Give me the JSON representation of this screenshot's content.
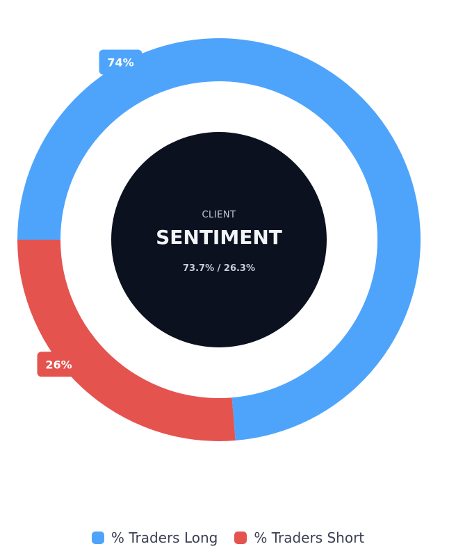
{
  "chart_data": {
    "type": "pie",
    "variant": "donut",
    "categories": [
      "% Traders Long",
      "% Traders Short"
    ],
    "values": [
      73.7,
      26.3
    ],
    "data_labels": [
      "74%",
      "26%"
    ],
    "colors": [
      "#4ea4fb",
      "#e5534f"
    ],
    "center": {
      "overline": "CLIENT",
      "title": "SENTIMENT",
      "ratio": "73.7% / 26.3%",
      "background": "#0c1120"
    },
    "legend": {
      "placement": "bottom",
      "items": [
        {
          "label": "% Traders Long",
          "color": "#4ea4fb"
        },
        {
          "label": "% Traders Short",
          "color": "#e5534f"
        }
      ]
    }
  }
}
